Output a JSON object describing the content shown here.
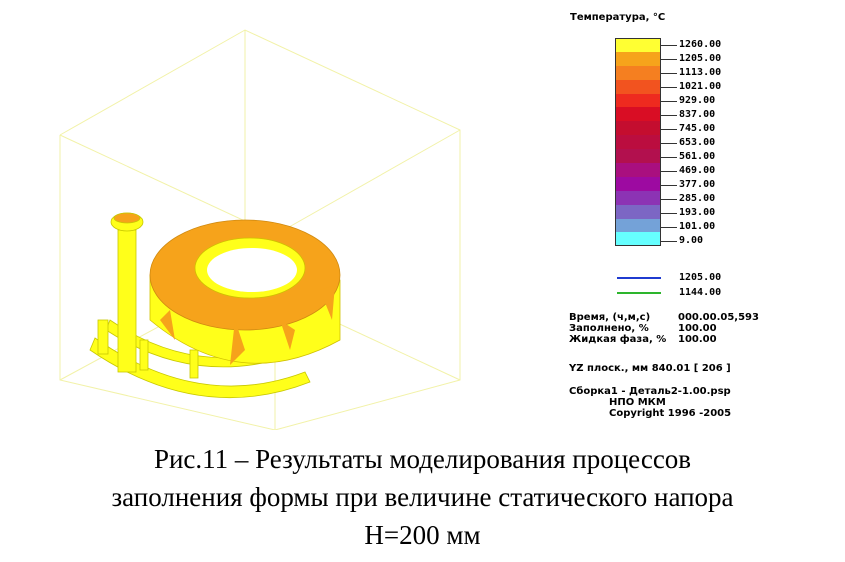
{
  "legend": {
    "title": "Температура, °C",
    "colors": [
      "#ffff33",
      "#f6a31b",
      "#f57f20",
      "#f2531f",
      "#ee2a1f",
      "#d90d24",
      "#c40d2f",
      "#bb0d3f",
      "#b2104e",
      "#a90f7f",
      "#9d0aa1",
      "#8c33b4",
      "#7c66c4",
      "#74a2d8",
      "#66ffff"
    ],
    "ticks": [
      "1260.00",
      "1205.00",
      "1113.00",
      "1021.00",
      "929.00",
      "837.00",
      "745.00",
      "653.00",
      "561.00",
      "469.00",
      "377.00",
      "285.00",
      "193.00",
      "101.00",
      "9.00"
    ]
  },
  "isolines": [
    {
      "value": "1205.00",
      "color": "#1f3bd0"
    },
    {
      "value": "1144.00",
      "color": "#2db52d"
    }
  ],
  "info": {
    "time_label": "Время, (ч,м,с)",
    "time_value": "000.00.05,593",
    "filled_label": "Заполнено, %",
    "filled_value": "100.00",
    "liquid_label": "Жидкая фаза, %",
    "liquid_value": "100.00",
    "plane": "YZ плоск., мм  840.01   [ 206 ]",
    "file": "Сборка1 - Деталь2-1.00.psp",
    "org": "НПО МКМ",
    "copyright": "Copyright 1996 -2005"
  },
  "caption": {
    "line1": "Рис.11 – Результаты моделирования процессов",
    "line2": "заполнения формы при величине статического напора",
    "line3": "H=200 мм"
  }
}
